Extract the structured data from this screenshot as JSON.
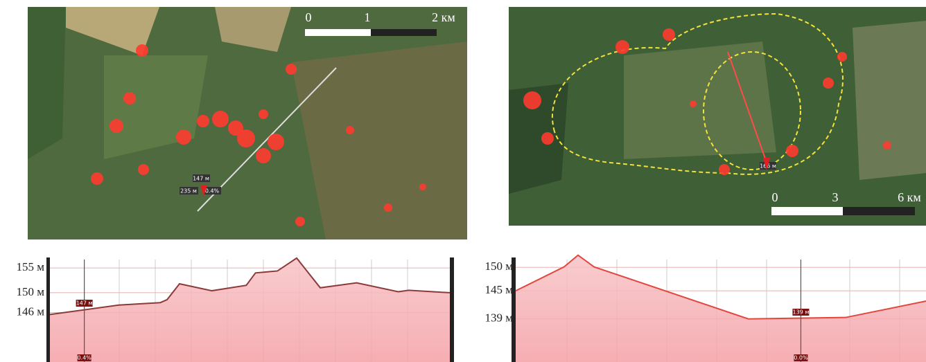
{
  "panels": [
    {
      "map": {
        "scale_labels": [
          "0",
          "1",
          "2 км"
        ],
        "labels": [
          "147 м",
          "235 м",
          "0.4%"
        ]
      },
      "profile": {
        "ylim": [
          136,
          157.4
        ],
        "yticks": [
          {
            "value": 155,
            "label": "155 м"
          },
          {
            "value": 150,
            "label": "150 м"
          },
          {
            "value": 146,
            "label": "146 м"
          }
        ],
        "x": [
          0,
          17.2,
          27.6,
          29.3,
          32.4,
          40.5,
          49.1,
          51.4,
          56.9,
          61.7,
          67.6,
          76.7,
          87.1,
          89.7,
          100
        ],
        "values": [
          145.6,
          147.5,
          148,
          148.6,
          151.8,
          150.4,
          151.5,
          154,
          154.4,
          157,
          151,
          152,
          150.2,
          150.5,
          150
        ],
        "marker_x": 8.6,
        "marker_labels": [
          "147 м",
          "0.4%"
        ]
      }
    },
    {
      "map": {
        "scale_labels": [
          "0",
          "3",
          "6 км"
        ],
        "labels": [
          "166 м"
        ]
      },
      "profile": {
        "ylim": [
          129.8,
          152.4
        ],
        "yticks": [
          {
            "value": 150,
            "label": "150 м"
          },
          {
            "value": 145,
            "label": "145 м"
          },
          {
            "value": 139,
            "label": "139 м"
          }
        ],
        "x": [
          0,
          11.8,
          15.2,
          19.1,
          56.7,
          80.4,
          100
        ],
        "values": [
          145,
          150.1,
          152.6,
          150.1,
          139,
          139.3,
          142.8
        ],
        "marker_x": 69.5,
        "marker_labels": [
          "139 м",
          "0.0%"
        ]
      }
    }
  ]
}
